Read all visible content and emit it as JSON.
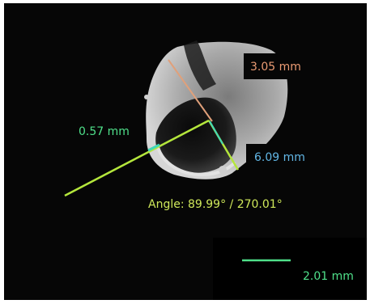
{
  "measurements": {
    "ruler_top": "3.05 mm",
    "ruler_left": "0.57 mm",
    "ruler_right": "6.09 mm",
    "angle": "Angle: 89.99° / 270.01°"
  },
  "scale_bar": {
    "label": "2.01 mm"
  },
  "colors": {
    "orange_ruler": "#e0a07a",
    "green_line": "#b4e63c",
    "cyan_segment": "#3fd8b8",
    "blue_label": "#62b7e6",
    "green_label": "#4fe08a"
  }
}
